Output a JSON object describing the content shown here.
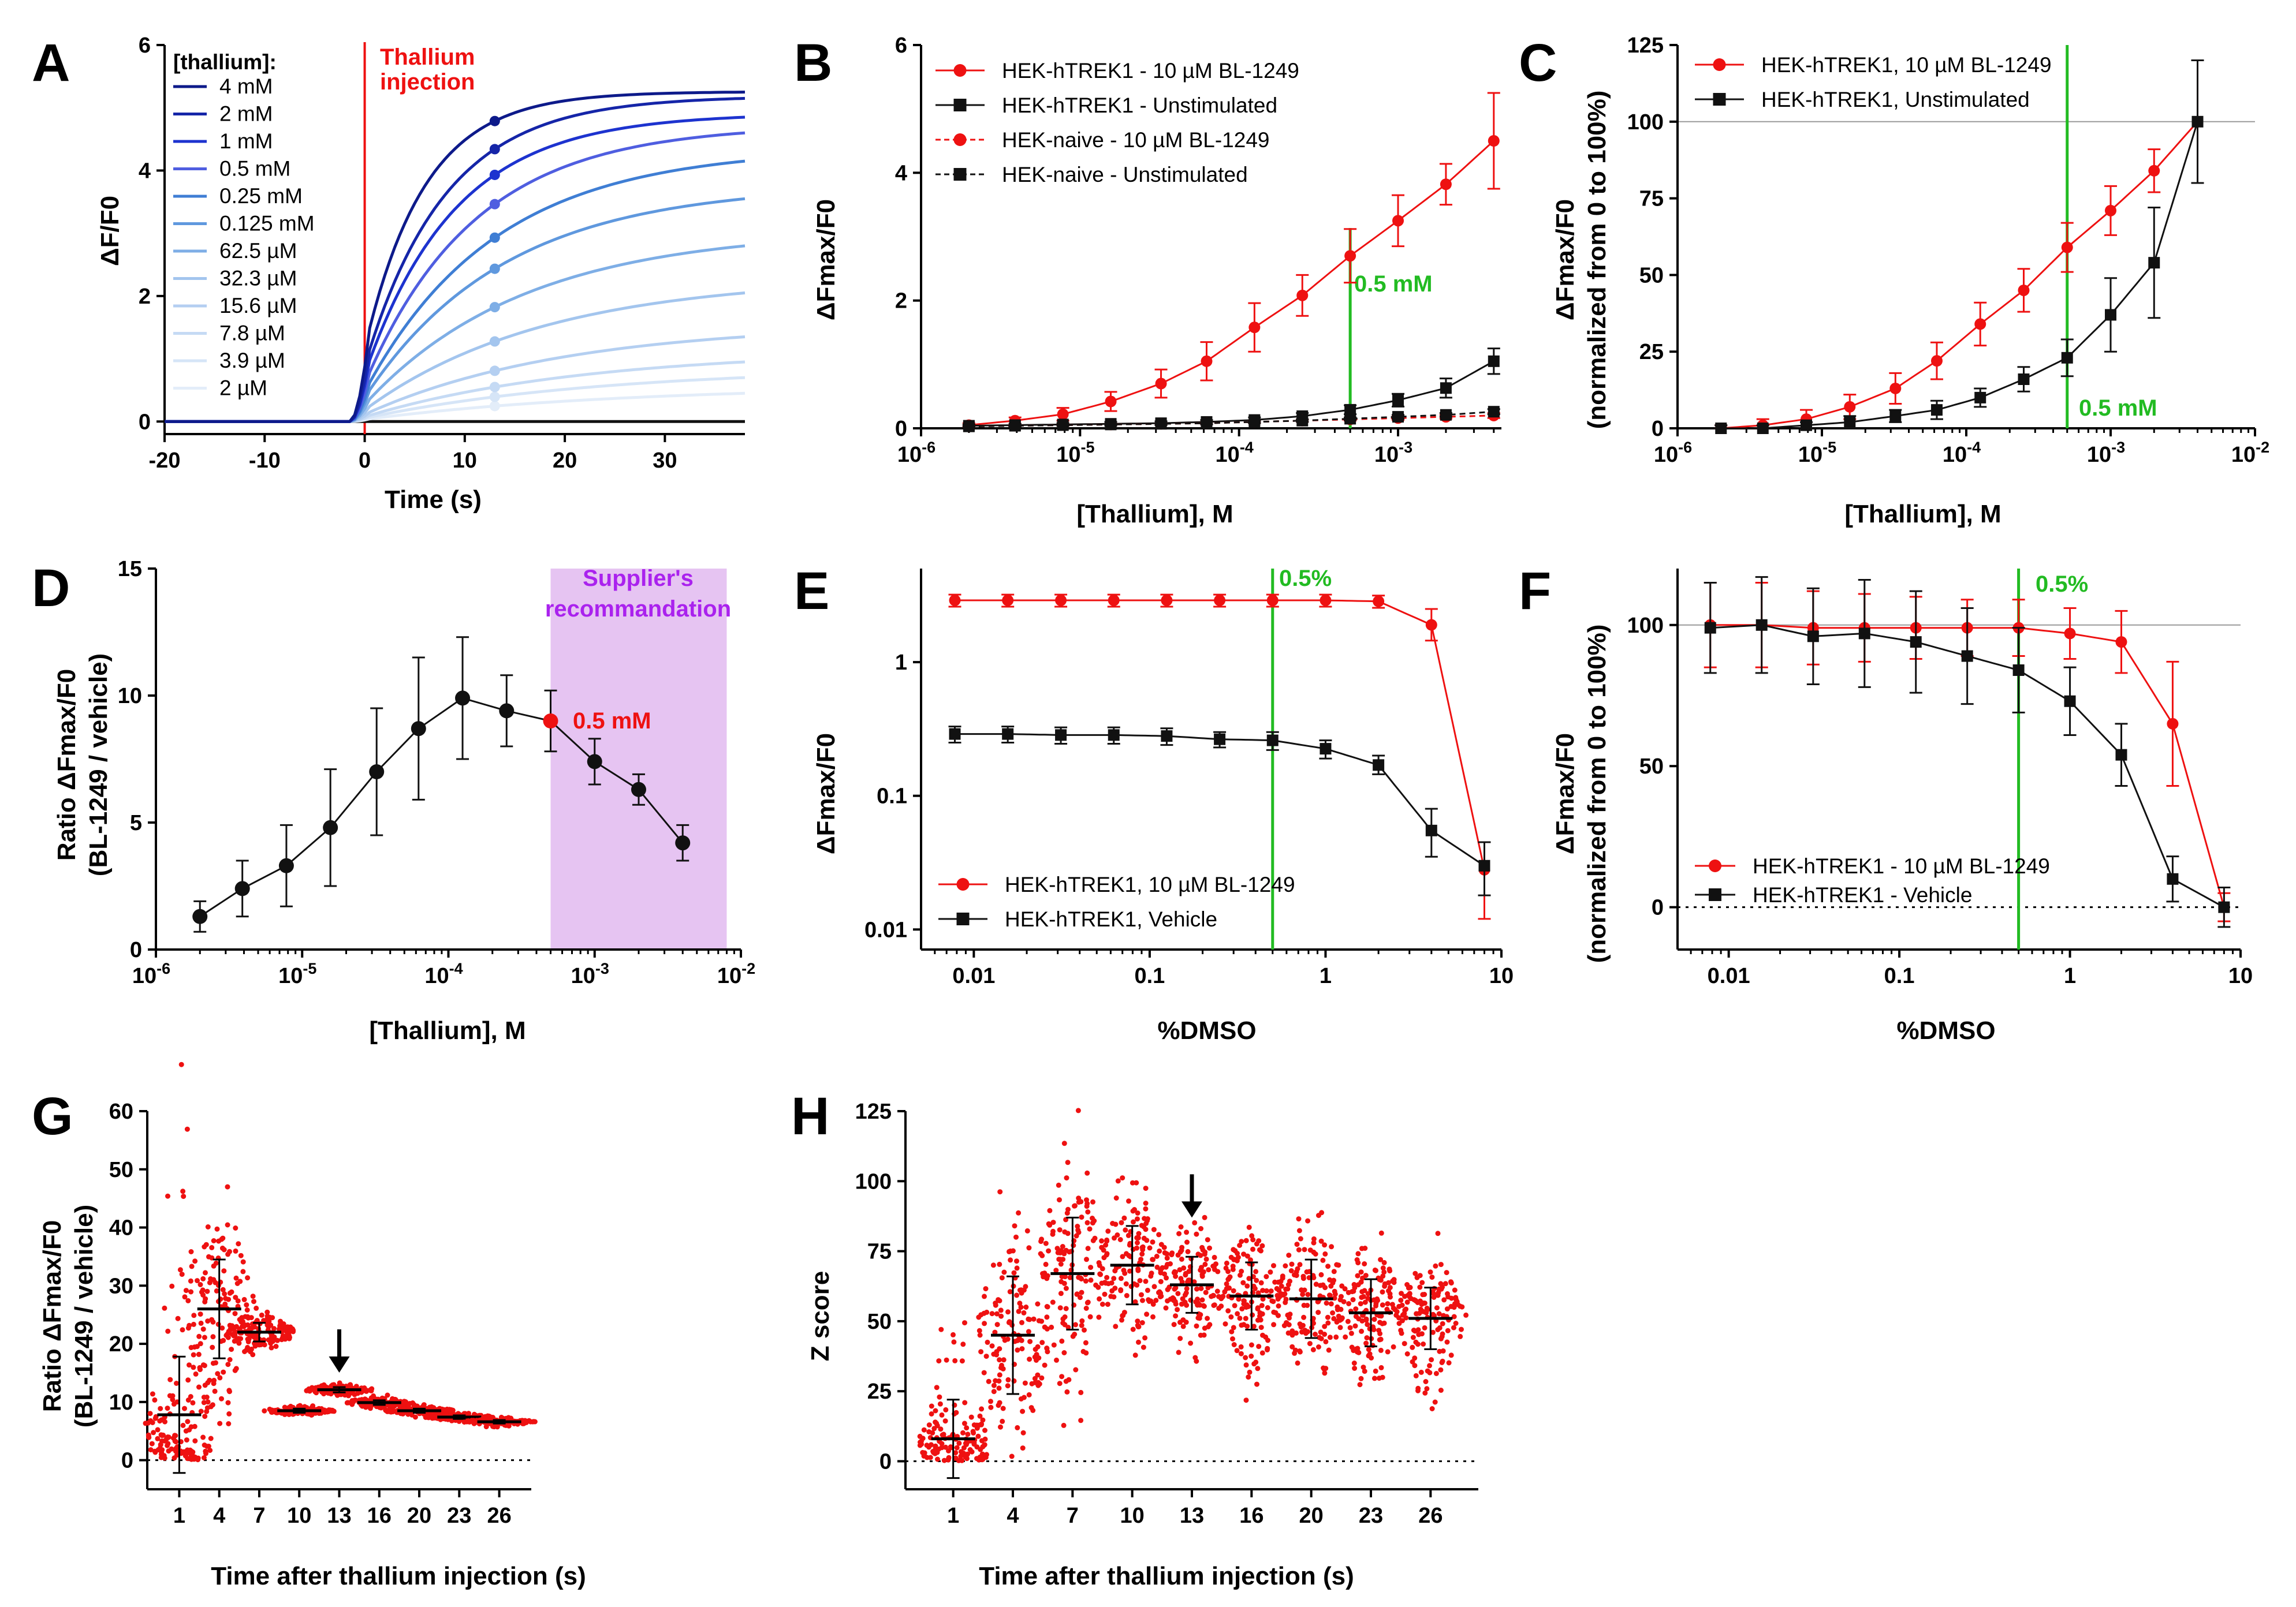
{
  "colors": {
    "red": "#ee1111",
    "black": "#111111",
    "green": "#22bb22",
    "purple_text": "#aa22ee",
    "purple_fill": "#e6c4f2",
    "ref_gray": "#9a9a9a",
    "blues": [
      "#0d1a8a",
      "#1525a8",
      "#1d33cf",
      "#4f5ee0",
      "#3f7ed4",
      "#5f98de",
      "#7eaee6",
      "#a3c5ee",
      "#b4cff1",
      "#c5daf4",
      "#d6e5f7",
      "#e3edf9"
    ]
  },
  "chart_data": [
    {
      "id": "A",
      "label": "A",
      "type": "line",
      "xlabel": "Time (s)",
      "ylabel": "ΔF/F0",
      "xlim": [
        -20,
        38
      ],
      "ylim": [
        -0.2,
        6
      ],
      "xticks": [
        -20,
        -10,
        0,
        10,
        20,
        30
      ],
      "xtick_labels": [
        "-20",
        "-10",
        "0",
        "10",
        "20",
        "30"
      ],
      "yticks": [
        0,
        2,
        4,
        6
      ],
      "ytick_labels": [
        "0",
        "2",
        "4",
        "6"
      ],
      "legend_title": "[thallium]:",
      "annotation_red": [
        "Thallium",
        "injection"
      ],
      "injection_time": 0,
      "marker_time": 13,
      "series": [
        {
          "name": "4 mM",
          "final": 5.25,
          "tau": 6
        },
        {
          "name": "2 mM",
          "final": 5.15,
          "tau": 8
        },
        {
          "name": "1 mM",
          "final": 4.85,
          "tau": 9
        },
        {
          "name": "0.5 mM",
          "final": 4.6,
          "tau": 11
        },
        {
          "name": "0.25 mM",
          "final": 4.15,
          "tau": 13
        },
        {
          "name": "0.125 mM",
          "final": 3.55,
          "tau": 14
        },
        {
          "name": "62.5 µM",
          "final": 2.8,
          "tau": 16
        },
        {
          "name": "32.3 µM",
          "final": 2.05,
          "tau": 18
        },
        {
          "name": "15.6 µM",
          "final": 1.35,
          "tau": 20
        },
        {
          "name": "7.8 µM",
          "final": 0.95,
          "tau": 22
        },
        {
          "name": "3.9 µM",
          "final": 0.7,
          "tau": 24
        },
        {
          "name": "2 µM",
          "final": 0.45,
          "tau": 26
        }
      ],
      "baseline_series_color": "black"
    },
    {
      "id": "B",
      "label": "B",
      "type": "line",
      "xlabel": "[Thallium], M",
      "ylabel": "ΔFmax/F0",
      "xscale": "log",
      "xlim_log": [
        -6,
        -2.35
      ],
      "ylim": [
        0,
        6
      ],
      "xticks_exp": [
        -6,
        -5,
        -4,
        -3
      ],
      "yticks": [
        0,
        2,
        4,
        6
      ],
      "ytick_labels": [
        "0",
        "2",
        "4",
        "6"
      ],
      "vline_x": 0.0005,
      "vline_label": "0.5 mM",
      "x": [
        2e-06,
        3.9e-06,
        7.8e-06,
        1.56e-05,
        3.23e-05,
        6.25e-05,
        0.000125,
        0.00025,
        0.0005,
        0.001,
        0.002,
        0.004
      ],
      "series": [
        {
          "name": "HEK-hTREK1 - 10 µM BL-1249",
          "color": "red",
          "marker": "circle",
          "dash": false,
          "values": [
            0.05,
            0.12,
            0.22,
            0.42,
            0.7,
            1.05,
            1.58,
            2.08,
            2.7,
            3.25,
            3.82,
            4.5
          ],
          "err": [
            0.03,
            0.05,
            0.1,
            0.15,
            0.22,
            0.3,
            0.38,
            0.32,
            0.42,
            0.4,
            0.32,
            0.75
          ]
        },
        {
          "name": "HEK-hTREK1 - Unstimulated",
          "color": "black",
          "marker": "square",
          "dash": false,
          "values": [
            0.04,
            0.05,
            0.06,
            0.07,
            0.08,
            0.1,
            0.13,
            0.19,
            0.29,
            0.44,
            0.63,
            1.05
          ],
          "err": [
            0.02,
            0.02,
            0.02,
            0.03,
            0.03,
            0.03,
            0.04,
            0.05,
            0.07,
            0.1,
            0.15,
            0.2
          ]
        },
        {
          "name": "HEK-naive - 10 µM BL-1249",
          "color": "red",
          "marker": "circle",
          "dash": true,
          "values": [
            0.03,
            0.04,
            0.05,
            0.06,
            0.07,
            0.08,
            0.1,
            0.12,
            0.14,
            0.16,
            0.18,
            0.2
          ],
          "err": [
            0.01,
            0.01,
            0.01,
            0.01,
            0.01,
            0.02,
            0.02,
            0.02,
            0.02,
            0.03,
            0.03,
            0.04
          ]
        },
        {
          "name": "HEK-naive - Unstimulated",
          "color": "black",
          "marker": "square",
          "dash": true,
          "values": [
            0.03,
            0.04,
            0.05,
            0.06,
            0.07,
            0.08,
            0.1,
            0.12,
            0.15,
            0.18,
            0.21,
            0.26
          ],
          "err": [
            0.01,
            0.01,
            0.01,
            0.01,
            0.01,
            0.02,
            0.02,
            0.02,
            0.02,
            0.03,
            0.03,
            0.04
          ]
        }
      ]
    },
    {
      "id": "C",
      "label": "C",
      "type": "line",
      "xlabel": "[Thallium], M",
      "ylabel": [
        "ΔFmax/F0",
        "(normalized from 0 to 100%)"
      ],
      "xscale": "log",
      "xlim_log": [
        -6,
        -2
      ],
      "ylim": [
        0,
        125
      ],
      "xticks_exp": [
        -6,
        -5,
        -4,
        -3,
        -2
      ],
      "yticks": [
        0,
        25,
        50,
        75,
        100,
        125
      ],
      "ytick_labels": [
        "0",
        "25",
        "50",
        "75",
        "100",
        "125"
      ],
      "hline_y": 100,
      "vline_x": 0.0005,
      "vline_label": "0.5 mM",
      "x": [
        2e-06,
        3.9e-06,
        7.8e-06,
        1.56e-05,
        3.23e-05,
        6.25e-05,
        0.000125,
        0.00025,
        0.0005,
        0.001,
        0.002,
        0.004
      ],
      "series": [
        {
          "name": "HEK-hTREK1, 10 µM BL-1249",
          "color": "red",
          "marker": "circle",
          "values": [
            0,
            1,
            3,
            7,
            13,
            22,
            34,
            45,
            59,
            71,
            84,
            100
          ],
          "err": [
            1,
            2,
            3,
            4,
            5,
            6,
            7,
            7,
            8,
            8,
            7,
            20
          ]
        },
        {
          "name": "HEK-hTREK1, Unstimulated",
          "color": "black",
          "marker": "square",
          "values": [
            0,
            0,
            1,
            2,
            4,
            6,
            10,
            16,
            23,
            37,
            54,
            100
          ],
          "err": [
            1,
            1,
            1,
            2,
            2,
            3,
            3,
            4,
            6,
            12,
            18,
            20
          ]
        }
      ]
    },
    {
      "id": "D",
      "label": "D",
      "type": "line",
      "xlabel": "[Thallium], M",
      "ylabel": [
        "Ratio ΔFmax/F0",
        "(BL-1249 / vehicle)"
      ],
      "xscale": "log",
      "xlim_log": [
        -6,
        -2
      ],
      "ylim": [
        0,
        15
      ],
      "xticks_exp": [
        -6,
        -5,
        -4,
        -3,
        -2
      ],
      "yticks": [
        0,
        5,
        10,
        15
      ],
      "ytick_labels": [
        "0",
        "5",
        "10",
        "15"
      ],
      "shade_x": [
        0.0005,
        0.008
      ],
      "shade_label": [
        "Supplier's",
        "recommandation"
      ],
      "highlight_label": "0.5 mM",
      "highlight_index": 8,
      "x": [
        2e-06,
        3.9e-06,
        7.8e-06,
        1.56e-05,
        3.23e-05,
        6.25e-05,
        0.000125,
        0.00025,
        0.0005,
        0.001,
        0.002,
        0.004
      ],
      "values": [
        1.3,
        2.4,
        3.3,
        4.8,
        7.0,
        8.7,
        9.9,
        9.4,
        9.0,
        7.4,
        6.3,
        4.2
      ],
      "err": [
        0.6,
        1.1,
        1.6,
        2.3,
        2.5,
        2.8,
        2.4,
        1.4,
        1.2,
        0.9,
        0.6,
        0.7
      ]
    },
    {
      "id": "E",
      "label": "E",
      "type": "line",
      "xlabel": "%DMSO",
      "ylabel": "ΔFmax/F0",
      "xscale": "log",
      "yscale": "log",
      "xlim_log": [
        -2.3,
        1
      ],
      "ylim_log": [
        -2.15,
        0.7
      ],
      "xticks": [
        0.01,
        0.1,
        1,
        10
      ],
      "xtick_labels": [
        "0.01",
        "0.1",
        "1",
        "10"
      ],
      "yticks": [
        0.01,
        0.1,
        1
      ],
      "ytick_labels": [
        "0.01",
        "0.1",
        "1"
      ],
      "vline_x": 0.5,
      "vline_label": "0.5%",
      "x": [
        0.0078,
        0.0156,
        0.03125,
        0.0625,
        0.125,
        0.25,
        0.5,
        1,
        2,
        4,
        8
      ],
      "series": [
        {
          "name": "HEK-hTREK1, 10 µM BL-1249",
          "color": "red",
          "marker": "circle",
          "values": [
            2.9,
            2.9,
            2.9,
            2.9,
            2.9,
            2.9,
            2.9,
            2.9,
            2.85,
            1.9,
            0.028
          ],
          "err_lo": [
            2.6,
            2.6,
            2.6,
            2.6,
            2.6,
            2.6,
            2.6,
            2.6,
            2.55,
            1.45,
            0.012
          ],
          "err_hi": [
            3.2,
            3.2,
            3.2,
            3.2,
            3.2,
            3.2,
            3.2,
            3.2,
            3.15,
            2.5,
            0.045
          ]
        },
        {
          "name": "HEK-hTREK1, Vehicle",
          "color": "black",
          "marker": "square",
          "values": [
            0.29,
            0.29,
            0.285,
            0.285,
            0.28,
            0.265,
            0.26,
            0.225,
            0.17,
            0.055,
            0.03
          ],
          "err_lo": [
            0.25,
            0.25,
            0.245,
            0.245,
            0.24,
            0.23,
            0.22,
            0.19,
            0.145,
            0.035,
            0.018
          ],
          "err_hi": [
            0.33,
            0.33,
            0.325,
            0.325,
            0.32,
            0.3,
            0.3,
            0.26,
            0.2,
            0.08,
            0.045
          ]
        }
      ]
    },
    {
      "id": "F",
      "label": "F",
      "type": "line",
      "xlabel": "%DMSO",
      "ylabel": [
        "ΔFmax/F0",
        "(normalized from 0 to 100%)"
      ],
      "xscale": "log",
      "xlim_log": [
        -2.3,
        1
      ],
      "ylim": [
        -15,
        120
      ],
      "xticks": [
        0.01,
        0.1,
        1,
        10
      ],
      "xtick_labels": [
        "0.01",
        "0.1",
        "1",
        "10"
      ],
      "yticks": [
        0,
        50,
        100
      ],
      "ytick_labels": [
        "0",
        "50",
        "100"
      ],
      "hline_y": 100,
      "vline_x": 0.5,
      "vline_label": "0.5%",
      "x": [
        0.0078,
        0.0156,
        0.03125,
        0.0625,
        0.125,
        0.25,
        0.5,
        1,
        2,
        4,
        8
      ],
      "series": [
        {
          "name": "HEK-hTREK1 - 10 µM BL-1249",
          "color": "red",
          "marker": "circle",
          "values": [
            100,
            100,
            99,
            99,
            99,
            99,
            99,
            97,
            94,
            65,
            0
          ],
          "err": [
            15,
            15,
            13,
            12,
            11,
            10,
            10,
            9,
            11,
            22,
            5
          ]
        },
        {
          "name": "HEK-hTREK1 - Vehicle",
          "color": "black",
          "marker": "square",
          "values": [
            99,
            100,
            96,
            97,
            94,
            89,
            84,
            73,
            54,
            10,
            0
          ],
          "err": [
            16,
            17,
            17,
            19,
            18,
            17,
            15,
            12,
            11,
            8,
            7
          ]
        }
      ]
    },
    {
      "id": "G",
      "label": "G",
      "type": "scatter",
      "xlabel": "Time after thallium injection (s)",
      "ylabel": [
        "Ratio ΔFmax/F0",
        "(BL-1249 / vehicle)"
      ],
      "ylim": [
        -5,
        60
      ],
      "yticks": [
        0,
        10,
        20,
        30,
        40,
        50,
        60
      ],
      "ytick_labels": [
        "0",
        "10",
        "20",
        "30",
        "40",
        "50",
        "60"
      ],
      "categories": [
        "1",
        "4",
        "7",
        "10",
        "13",
        "16",
        "20",
        "23",
        "26"
      ],
      "means": [
        7.8,
        26,
        22,
        8.5,
        12.1,
        9.9,
        8.5,
        7.4,
        6.6
      ],
      "sd": [
        10,
        8.5,
        1.6,
        0.35,
        0.45,
        0.4,
        0.35,
        0.3,
        0.3
      ],
      "arrow_category_index": 4
    },
    {
      "id": "H",
      "label": "H",
      "type": "scatter",
      "xlabel": "Time after thallium injection (s)",
      "ylabel": "Z score",
      "ylim": [
        -10,
        125
      ],
      "yticks": [
        0,
        25,
        50,
        75,
        100,
        125
      ],
      "ytick_labels": [
        "0",
        "25",
        "50",
        "75",
        "100",
        "125"
      ],
      "categories": [
        "1",
        "4",
        "7",
        "10",
        "13",
        "16",
        "20",
        "23",
        "26"
      ],
      "means": [
        8,
        45,
        67,
        70,
        63,
        59,
        58,
        53,
        51
      ],
      "sd": [
        14,
        21,
        20,
        14,
        10,
        12,
        14,
        12,
        11
      ],
      "arrow_category_index": 4
    }
  ]
}
